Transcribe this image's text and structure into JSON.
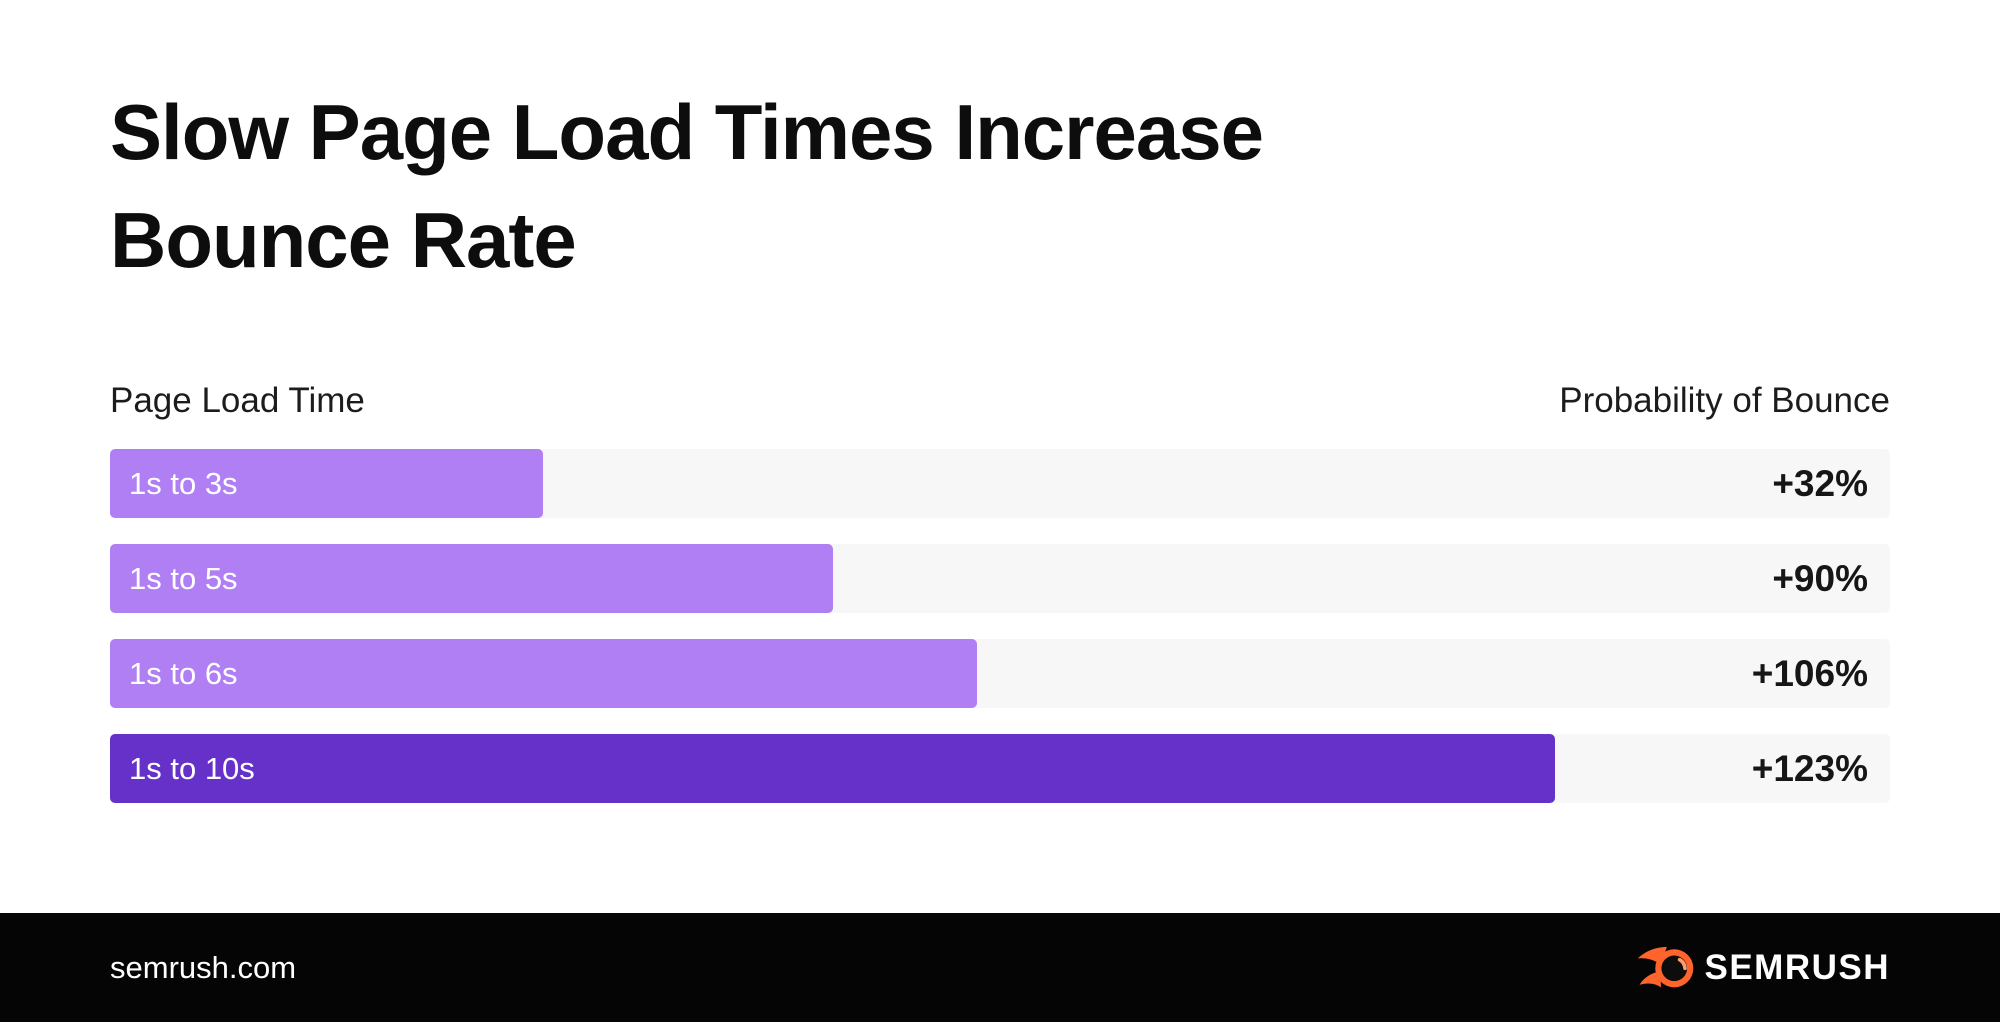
{
  "page": {
    "title_line1": "Slow Page Load Times Increase",
    "title_line2": "Bounce Rate"
  },
  "chart_header": {
    "left": "Page Load Time",
    "right": "Probability of Bounce"
  },
  "chart_data": {
    "type": "bar",
    "orientation": "horizontal",
    "title": "Slow Page Load Times Increase Bounce Rate",
    "category_axis_label": "Page Load Time",
    "value_axis_label": "Probability of Bounce",
    "categories": [
      "1s to 3s",
      "1s to 5s",
      "1s to 6s",
      "1s to 10s"
    ],
    "values": [
      32,
      90,
      106,
      123
    ],
    "value_labels": [
      "+32%",
      "+90%",
      "+106%",
      "+123%"
    ],
    "bar_width_pct": [
      24.3,
      40.6,
      48.7,
      81.2
    ],
    "bar_colors": [
      "#b17ff4",
      "#b17ff4",
      "#b17ff4",
      "#6531c9"
    ],
    "grid": false,
    "legend": "none"
  },
  "theme": {
    "page_bg": "#ffffff",
    "text": "#0d0d0d",
    "track": "#f7f7f8",
    "bar_light": "#b17ff4",
    "bar_dark": "#6531c9",
    "footer_bg": "#050505",
    "footer_text": "#ffffff",
    "brand_orange": "#ff642d"
  },
  "footer": {
    "site": "semrush.com",
    "brand": "SEMRUSH",
    "brand_icon": "semrush-flame-icon"
  }
}
